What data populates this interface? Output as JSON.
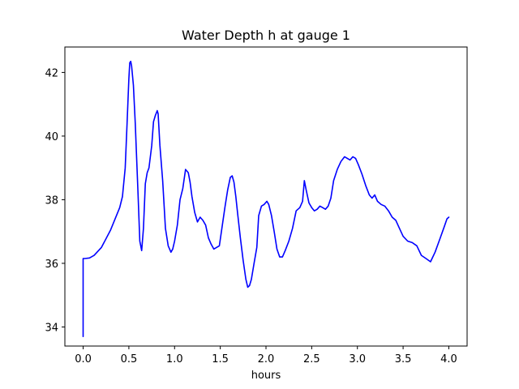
{
  "chart_data": {
    "type": "line",
    "title": "Water Depth h at gauge 1",
    "xlabel": "hours",
    "ylabel": "",
    "xlim": [
      -0.2,
      4.2
    ],
    "ylim": [
      33.4,
      42.8
    ],
    "xticks": [
      0.0,
      0.5,
      1.0,
      1.5,
      2.0,
      2.5,
      3.0,
      3.5,
      4.0
    ],
    "xtick_labels": [
      "0.0",
      "0.5",
      "1.0",
      "1.5",
      "2.0",
      "2.5",
      "3.0",
      "3.5",
      "4.0"
    ],
    "yticks": [
      34,
      36,
      38,
      40,
      42
    ],
    "ytick_labels": [
      "34",
      "36",
      "38",
      "40",
      "42"
    ],
    "grid": false,
    "legend": "none",
    "series": [
      {
        "color": "#0000ff",
        "x": [
          0.0,
          0.0,
          0.02,
          0.07,
          0.12,
          0.2,
          0.3,
          0.4,
          0.43,
          0.46,
          0.48,
          0.5,
          0.51,
          0.52,
          0.53,
          0.55,
          0.57,
          0.6,
          0.62,
          0.64,
          0.66,
          0.68,
          0.7,
          0.72,
          0.75,
          0.77,
          0.79,
          0.81,
          0.82,
          0.84,
          0.87,
          0.9,
          0.93,
          0.96,
          0.98,
          1.0,
          1.03,
          1.06,
          1.09,
          1.12,
          1.15,
          1.17,
          1.19,
          1.22,
          1.25,
          1.28,
          1.31,
          1.34,
          1.37,
          1.4,
          1.43,
          1.46,
          1.49,
          1.52,
          1.55,
          1.58,
          1.61,
          1.63,
          1.65,
          1.67,
          1.69,
          1.72,
          1.75,
          1.78,
          1.8,
          1.82,
          1.84,
          1.87,
          1.9,
          1.92,
          1.95,
          1.98,
          2.01,
          2.03,
          2.06,
          2.09,
          2.12,
          2.15,
          2.18,
          2.21,
          2.25,
          2.29,
          2.33,
          2.37,
          2.4,
          2.42,
          2.44,
          2.47,
          2.5,
          2.53,
          2.56,
          2.59,
          2.62,
          2.65,
          2.68,
          2.71,
          2.74,
          2.78,
          2.82,
          2.86,
          2.89,
          2.92,
          2.95,
          2.98,
          3.01,
          3.05,
          3.09,
          3.13,
          3.16,
          3.19,
          3.22,
          3.26,
          3.3,
          3.34,
          3.38,
          3.42,
          3.46,
          3.5,
          3.55,
          3.6,
          3.65,
          3.7,
          3.75,
          3.8,
          3.85,
          3.9,
          3.95,
          3.98,
          4.0
        ],
        "y": [
          33.7,
          36.15,
          36.15,
          36.17,
          36.25,
          36.5,
          37.05,
          37.75,
          38.1,
          39.0,
          40.4,
          41.8,
          42.3,
          42.35,
          42.2,
          41.6,
          40.4,
          38.2,
          36.7,
          36.4,
          37.1,
          38.5,
          38.85,
          39.0,
          39.7,
          40.45,
          40.65,
          40.8,
          40.7,
          39.7,
          38.6,
          37.1,
          36.55,
          36.35,
          36.45,
          36.7,
          37.2,
          38.0,
          38.35,
          38.95,
          38.85,
          38.55,
          38.1,
          37.6,
          37.3,
          37.45,
          37.35,
          37.2,
          36.8,
          36.6,
          36.45,
          36.5,
          36.55,
          37.15,
          37.75,
          38.3,
          38.7,
          38.75,
          38.55,
          38.1,
          37.55,
          36.8,
          36.1,
          35.5,
          35.25,
          35.3,
          35.5,
          36.0,
          36.5,
          37.5,
          37.8,
          37.85,
          37.95,
          37.85,
          37.5,
          37.0,
          36.45,
          36.2,
          36.2,
          36.4,
          36.7,
          37.1,
          37.65,
          37.75,
          37.95,
          38.6,
          38.3,
          37.9,
          37.75,
          37.65,
          37.7,
          37.8,
          37.75,
          37.7,
          37.8,
          38.05,
          38.6,
          38.95,
          39.2,
          39.35,
          39.3,
          39.25,
          39.35,
          39.3,
          39.1,
          38.8,
          38.45,
          38.15,
          38.05,
          38.15,
          37.95,
          37.85,
          37.8,
          37.65,
          37.45,
          37.35,
          37.1,
          36.85,
          36.7,
          36.65,
          36.55,
          36.25,
          36.15,
          36.05,
          36.35,
          36.75,
          37.15,
          37.4,
          37.45
        ]
      }
    ]
  }
}
